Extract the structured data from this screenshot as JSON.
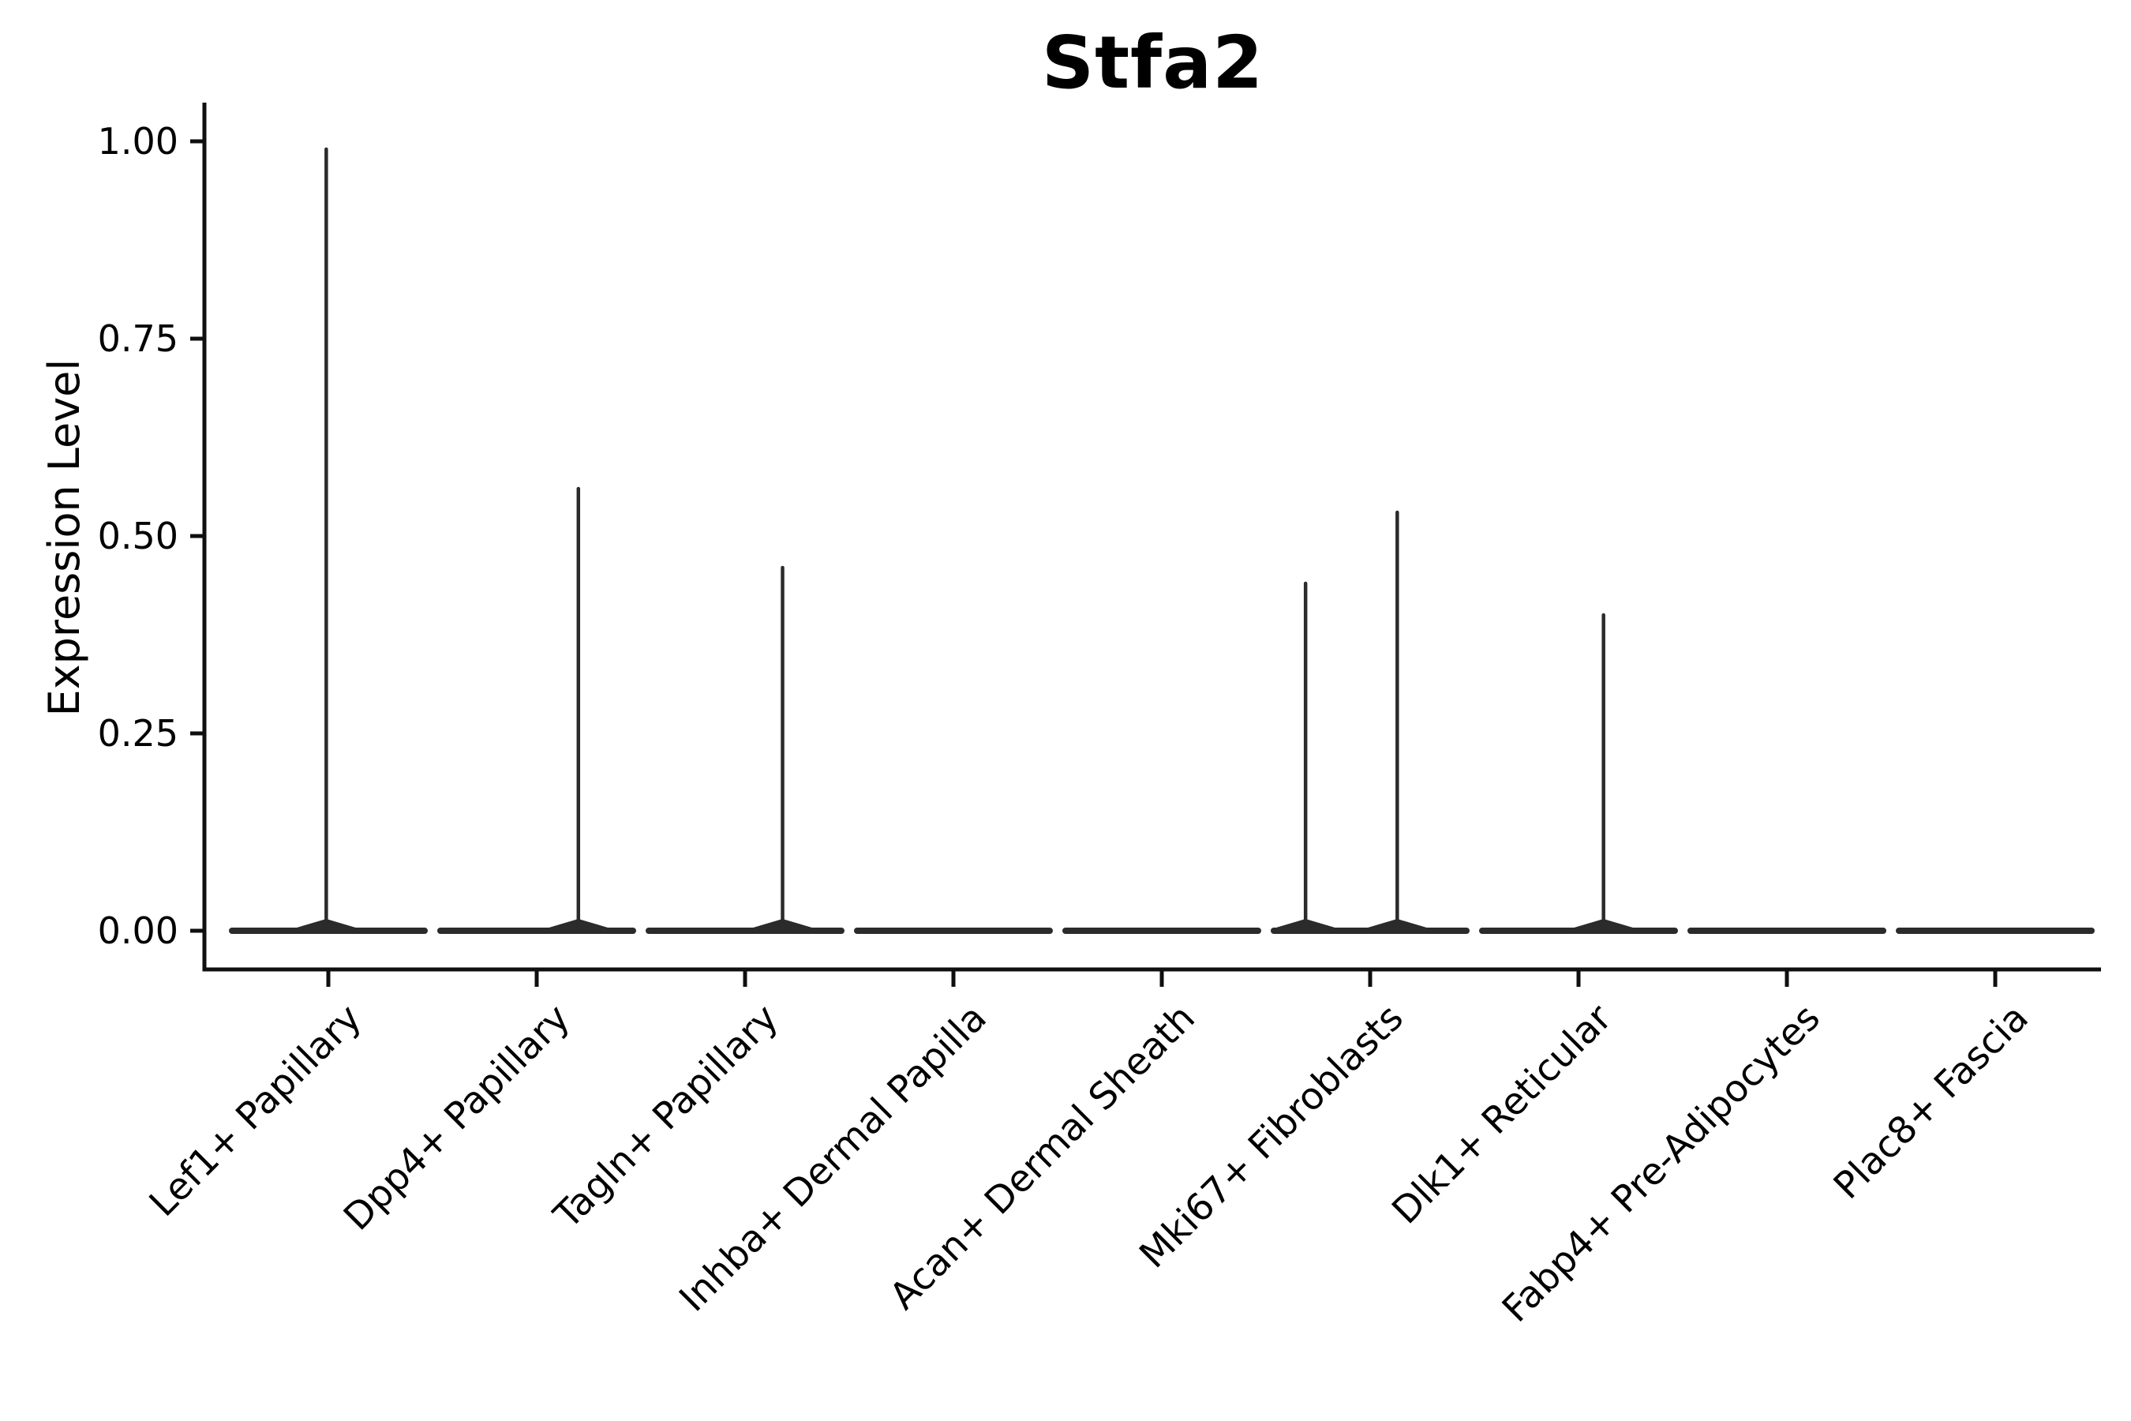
{
  "title": "Stfa2",
  "axes": {
    "ylabel": "Expression Level",
    "ytick_labels": [
      "0.00",
      "0.25",
      "0.50",
      "0.75",
      "1.00"
    ]
  },
  "colors": {
    "violin_line": "#2b2b2b",
    "spine": "#0f0f0f",
    "text": "#000000",
    "background": "#ffffff"
  },
  "chart_data": {
    "type": "violin",
    "title": "Stfa2",
    "xlabel": "",
    "ylabel": "Expression Level",
    "ylim": [
      0,
      1.05
    ],
    "yticks": [
      0,
      0.25,
      0.5,
      0.75,
      1.0
    ],
    "grid": false,
    "legend": false,
    "categories": [
      "Lef1+ Papillary",
      "Dpp4+ Papillary",
      "Tagln+ Papillary",
      "Inhba+ Dermal Papilla",
      "Acan+ Dermal Sheath",
      "Mki67+ Fibroblasts",
      "Dlk1+ Reticular",
      "Fabp4+ Pre-Adipocytes",
      "Plac8+ Fascia"
    ],
    "violins": [
      {
        "category": "Lef1+ Papillary",
        "zero_bulk": true,
        "spikes": [
          {
            "value": 0.99,
            "offset_frac": -0.01
          }
        ]
      },
      {
        "category": "Dpp4+ Papillary",
        "zero_bulk": true,
        "spikes": [
          {
            "value": 0.56,
            "offset_frac": 0.2
          }
        ]
      },
      {
        "category": "Tagln+ Papillary",
        "zero_bulk": true,
        "spikes": [
          {
            "value": 0.46,
            "offset_frac": 0.18
          }
        ]
      },
      {
        "category": "Inhba+ Dermal Papilla",
        "zero_bulk": true,
        "spikes": []
      },
      {
        "category": "Acan+ Dermal Sheath",
        "zero_bulk": true,
        "spikes": []
      },
      {
        "category": "Mki67+ Fibroblasts",
        "zero_bulk": true,
        "spikes": [
          {
            "value": 0.44,
            "offset_frac": -0.31
          },
          {
            "value": 0.53,
            "offset_frac": 0.13
          }
        ]
      },
      {
        "category": "Dlk1+ Reticular",
        "zero_bulk": true,
        "spikes": [
          {
            "value": 0.4,
            "offset_frac": 0.12
          }
        ]
      },
      {
        "category": "Fabp4+ Pre-Adipocytes",
        "zero_bulk": true,
        "spikes": []
      },
      {
        "category": "Plac8+ Fascia",
        "zero_bulk": true,
        "spikes": []
      }
    ]
  }
}
